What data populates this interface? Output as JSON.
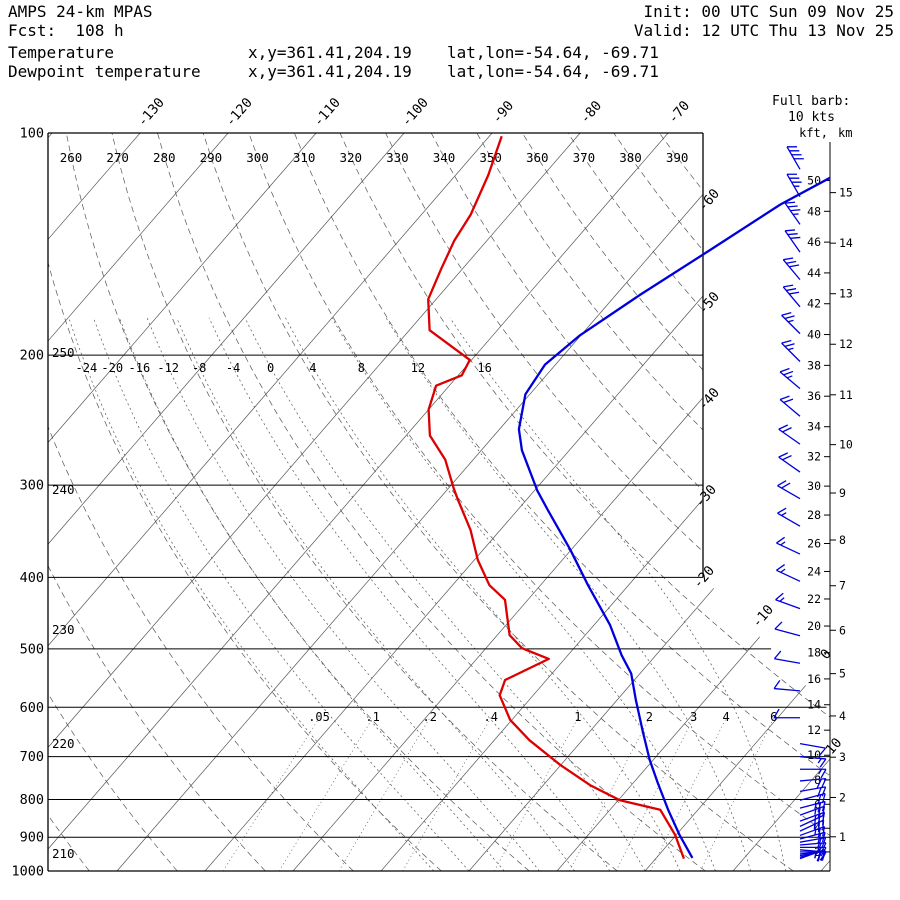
{
  "header": {
    "model": "AMPS 24-km MPAS",
    "fcst": "Fcst:  108 h",
    "init": "Init: 00 UTC Sun 09 Nov 25",
    "valid": "Valid: 12 UTC Thu 13 Nov 25"
  },
  "legend": {
    "temperature": {
      "label": "Temperature",
      "xy": "x,y=361.41,204.19",
      "latlon": "lat,lon=-54.64, -69.71",
      "color": "#0000dd"
    },
    "dewpoint": {
      "label": "Dewpoint temperature",
      "xy": "x,y=361.41,204.19",
      "latlon": "lat,lon=-54.64, -69.71",
      "color": "#dd0000"
    }
  },
  "barb_legend": {
    "line1": "Full barb:",
    "line2": "10 kts",
    "color": "#0000dd"
  },
  "axes": {
    "pressure_ticks": [
      100,
      200,
      300,
      400,
      500,
      600,
      700,
      800,
      900,
      1000
    ],
    "isotherm_top_labels": [
      -130,
      -120,
      -110,
      -100,
      -90,
      -80,
      -70
    ],
    "isotherm_right_labels": [
      -60,
      -50,
      -40,
      -30,
      -20,
      -10,
      0,
      10
    ],
    "theta_top_labels": [
      260,
      270,
      280,
      290,
      300,
      310,
      320,
      330,
      340,
      350,
      360,
      370,
      380,
      390
    ],
    "theta_left_labels": [
      250,
      240,
      230,
      220,
      210
    ],
    "thetaw_labels": [
      -24,
      -20,
      -16,
      -12,
      -8,
      -4,
      0,
      4,
      8,
      12,
      16
    ],
    "mixing_ratio_labels": [
      ".05",
      ".1",
      ".2",
      ".4",
      "1",
      "2",
      "3",
      "4",
      "6"
    ],
    "mixing_ratio_values": [
      0.05,
      0.1,
      0.2,
      0.4,
      1,
      2,
      3,
      4,
      6
    ],
    "height_axis": {
      "kft_label": "kft,",
      "km_label": "km",
      "kft_ticks": [
        50,
        48,
        46,
        44,
        42,
        40,
        38,
        36,
        34,
        32,
        30,
        28,
        26,
        24,
        22,
        20,
        18,
        16,
        14,
        12,
        10,
        8,
        6,
        4,
        2
      ],
      "km_ticks": [
        15,
        14,
        13,
        12,
        11,
        10,
        9,
        8,
        7,
        6,
        5,
        4,
        3,
        2,
        1
      ]
    }
  },
  "chart_data": {
    "type": "line",
    "chart_kind": "skew-T log-p sounding",
    "pressure_scale": "log",
    "pressure_range": [
      100,
      1000
    ],
    "series": [
      {
        "name": "Temperature",
        "units": "degC vs hPa",
        "color": "#0000dd",
        "points": [
          [
            960,
            4.1
          ],
          [
            894,
            0.4
          ],
          [
            826,
            -3.4
          ],
          [
            760,
            -7.2
          ],
          [
            707,
            -10.4
          ],
          [
            650,
            -13.8
          ],
          [
            586,
            -17.9
          ],
          [
            540,
            -21.0
          ],
          [
            510,
            -23.9
          ],
          [
            464,
            -28.2
          ],
          [
            410,
            -34.6
          ],
          [
            367,
            -40.1
          ],
          [
            324,
            -46.6
          ],
          [
            305,
            -49.7
          ],
          [
            269,
            -55.4
          ],
          [
            252,
            -57.8
          ],
          [
            226,
            -60.5
          ],
          [
            206,
            -61.2
          ],
          [
            188,
            -60.1
          ],
          [
            166,
            -57.3
          ],
          [
            144,
            -53.7
          ],
          [
            125,
            -50.2
          ],
          [
            115,
            -47.2
          ]
        ]
      },
      {
        "name": "Dewpoint temperature",
        "units": "degC vs hPa",
        "color": "#dd0000",
        "points": [
          [
            962,
            3.2
          ],
          [
            894,
            -0.1
          ],
          [
            826,
            -4.3
          ],
          [
            802,
            -9.8
          ],
          [
            765,
            -14.7
          ],
          [
            718,
            -20.1
          ],
          [
            665,
            -26.0
          ],
          [
            624,
            -30.2
          ],
          [
            578,
            -33.8
          ],
          [
            551,
            -34.7
          ],
          [
            516,
            -31.8
          ],
          [
            499,
            -35.9
          ],
          [
            479,
            -38.6
          ],
          [
            429,
            -42.6
          ],
          [
            410,
            -45.8
          ],
          [
            379,
            -49.6
          ],
          [
            345,
            -53.4
          ],
          [
            314,
            -57.8
          ],
          [
            303,
            -59.4
          ],
          [
            277,
            -63.2
          ],
          [
            257,
            -67.3
          ],
          [
            237,
            -70.0
          ],
          [
            220,
            -71.5
          ],
          [
            213,
            -69.6
          ],
          [
            203,
            -70.2
          ],
          [
            185,
            -77.7
          ],
          [
            168,
            -80.9
          ],
          [
            153,
            -82.4
          ],
          [
            140,
            -83.7
          ],
          [
            129,
            -84.4
          ],
          [
            114,
            -86.3
          ],
          [
            101,
            -88.6
          ]
        ]
      }
    ],
    "wind_barbs": {
      "full_barb_kts": 10,
      "levels_p_dir_spd": [
        [
          112,
          330,
          40
        ],
        [
          122,
          330,
          35
        ],
        [
          133,
          325,
          35
        ],
        [
          145,
          325,
          30
        ],
        [
          158,
          320,
          30
        ],
        [
          172,
          320,
          30
        ],
        [
          187,
          315,
          25
        ],
        [
          204,
          315,
          25
        ],
        [
          222,
          310,
          25
        ],
        [
          242,
          310,
          20
        ],
        [
          264,
          305,
          20
        ],
        [
          288,
          305,
          20
        ],
        [
          313,
          300,
          20
        ],
        [
          341,
          300,
          15
        ],
        [
          372,
          295,
          15
        ],
        [
          405,
          295,
          15
        ],
        [
          441,
          290,
          15
        ],
        [
          480,
          285,
          10
        ],
        [
          523,
          280,
          10
        ],
        [
          570,
          275,
          10
        ],
        [
          620,
          270,
          10
        ],
        [
          672,
          100,
          10
        ],
        [
          700,
          95,
          15
        ],
        [
          728,
          90,
          15
        ],
        [
          755,
          85,
          20
        ],
        [
          780,
          80,
          20
        ],
        [
          802,
          75,
          20
        ],
        [
          822,
          75,
          25
        ],
        [
          840,
          70,
          25
        ],
        [
          856,
          70,
          25
        ],
        [
          870,
          65,
          30
        ],
        [
          883,
          65,
          25
        ],
        [
          895,
          70,
          25
        ],
        [
          905,
          75,
          20
        ],
        [
          914,
          80,
          20
        ],
        [
          922,
          85,
          20
        ],
        [
          929,
          90,
          15
        ],
        [
          936,
          95,
          15
        ],
        [
          942,
          90,
          15
        ],
        [
          948,
          85,
          20
        ],
        [
          953,
          80,
          20
        ],
        [
          958,
          75,
          25
        ],
        [
          962,
          70,
          25
        ]
      ]
    }
  }
}
